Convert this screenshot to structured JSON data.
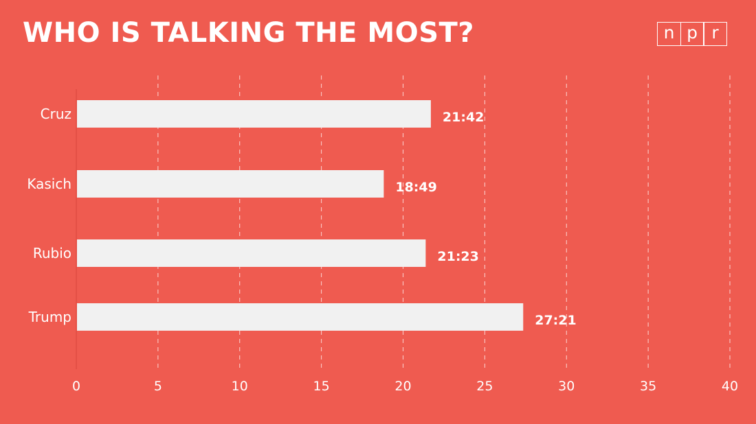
{
  "colors": {
    "background": "#EF5B50",
    "bar": "#F1F1F1",
    "text": "#FFFFFF",
    "grid": "#FFFFFF",
    "axis": "#E14C42"
  },
  "logo": {
    "letters": [
      "n",
      "p",
      "r"
    ]
  },
  "chart_data": {
    "type": "bar",
    "orientation": "horizontal",
    "title": "WHO IS TALKING THE MOST?",
    "categories": [
      "Cruz",
      "Kasich",
      "Rubio",
      "Trump"
    ],
    "values": [
      21.7,
      18.817,
      21.383,
      27.35
    ],
    "value_labels": [
      "21:42",
      "18:49",
      "21:23",
      "27:21"
    ],
    "xlim": [
      0,
      40
    ],
    "xticks": [
      0,
      5,
      10,
      15,
      20,
      25,
      30,
      35,
      40
    ],
    "grid": "vertical dashed",
    "legend": "none"
  }
}
